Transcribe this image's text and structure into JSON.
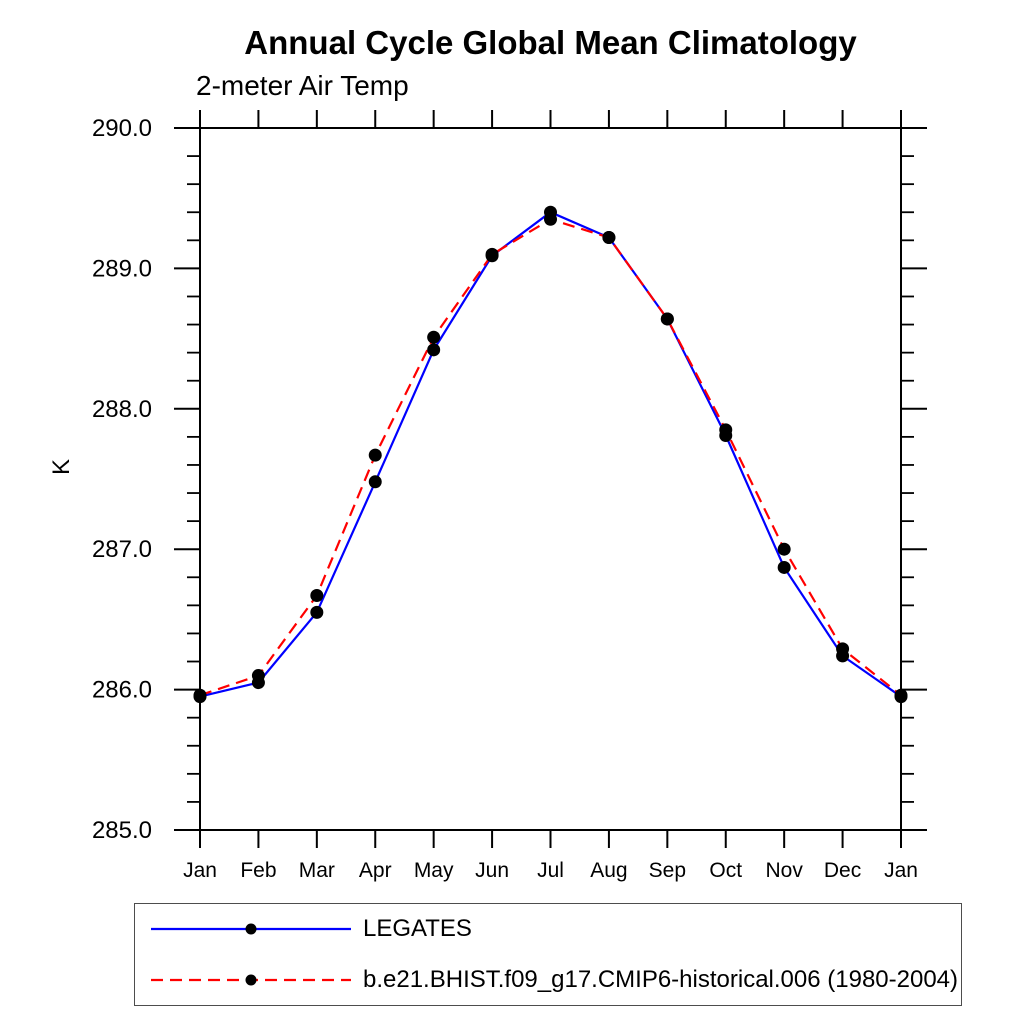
{
  "chart_data": {
    "type": "line",
    "title": "Annual Cycle Global Mean Climatology",
    "subtitle": "2-meter Air Temp",
    "ylabel": "K",
    "xlabel": "",
    "categories": [
      "Jan",
      "Feb",
      "Mar",
      "Apr",
      "May",
      "Jun",
      "Jul",
      "Aug",
      "Sep",
      "Oct",
      "Nov",
      "Dec",
      "Jan"
    ],
    "ylim": [
      285.0,
      290.0
    ],
    "ytick_interval": 1.0,
    "ytick_minor_interval": 0.2,
    "ytick_labels": [
      "285.0",
      "286.0",
      "287.0",
      "288.0",
      "289.0",
      "290.0"
    ],
    "grid": false,
    "legend_position": "bottom-left",
    "legend_border_color": "#4d4d4d",
    "axis_color": "#000000",
    "marker": "filled-circle",
    "marker_color": "#000000",
    "series": [
      {
        "name": "LEGATES",
        "color": "#0000ff",
        "line_style": "solid",
        "values": [
          285.95,
          286.05,
          286.55,
          287.48,
          288.42,
          289.09,
          289.4,
          289.22,
          288.64,
          287.81,
          286.87,
          286.24,
          285.95
        ]
      },
      {
        "name": "b.e21.BHIST.f09_g17.CMIP6-historical.006 (1980-2004)",
        "color": "#ff0000",
        "line_style": "dashed",
        "values": [
          285.96,
          286.1,
          286.67,
          287.67,
          288.51,
          289.1,
          289.35,
          289.22,
          288.64,
          287.85,
          287.0,
          286.29,
          285.96
        ]
      }
    ]
  }
}
